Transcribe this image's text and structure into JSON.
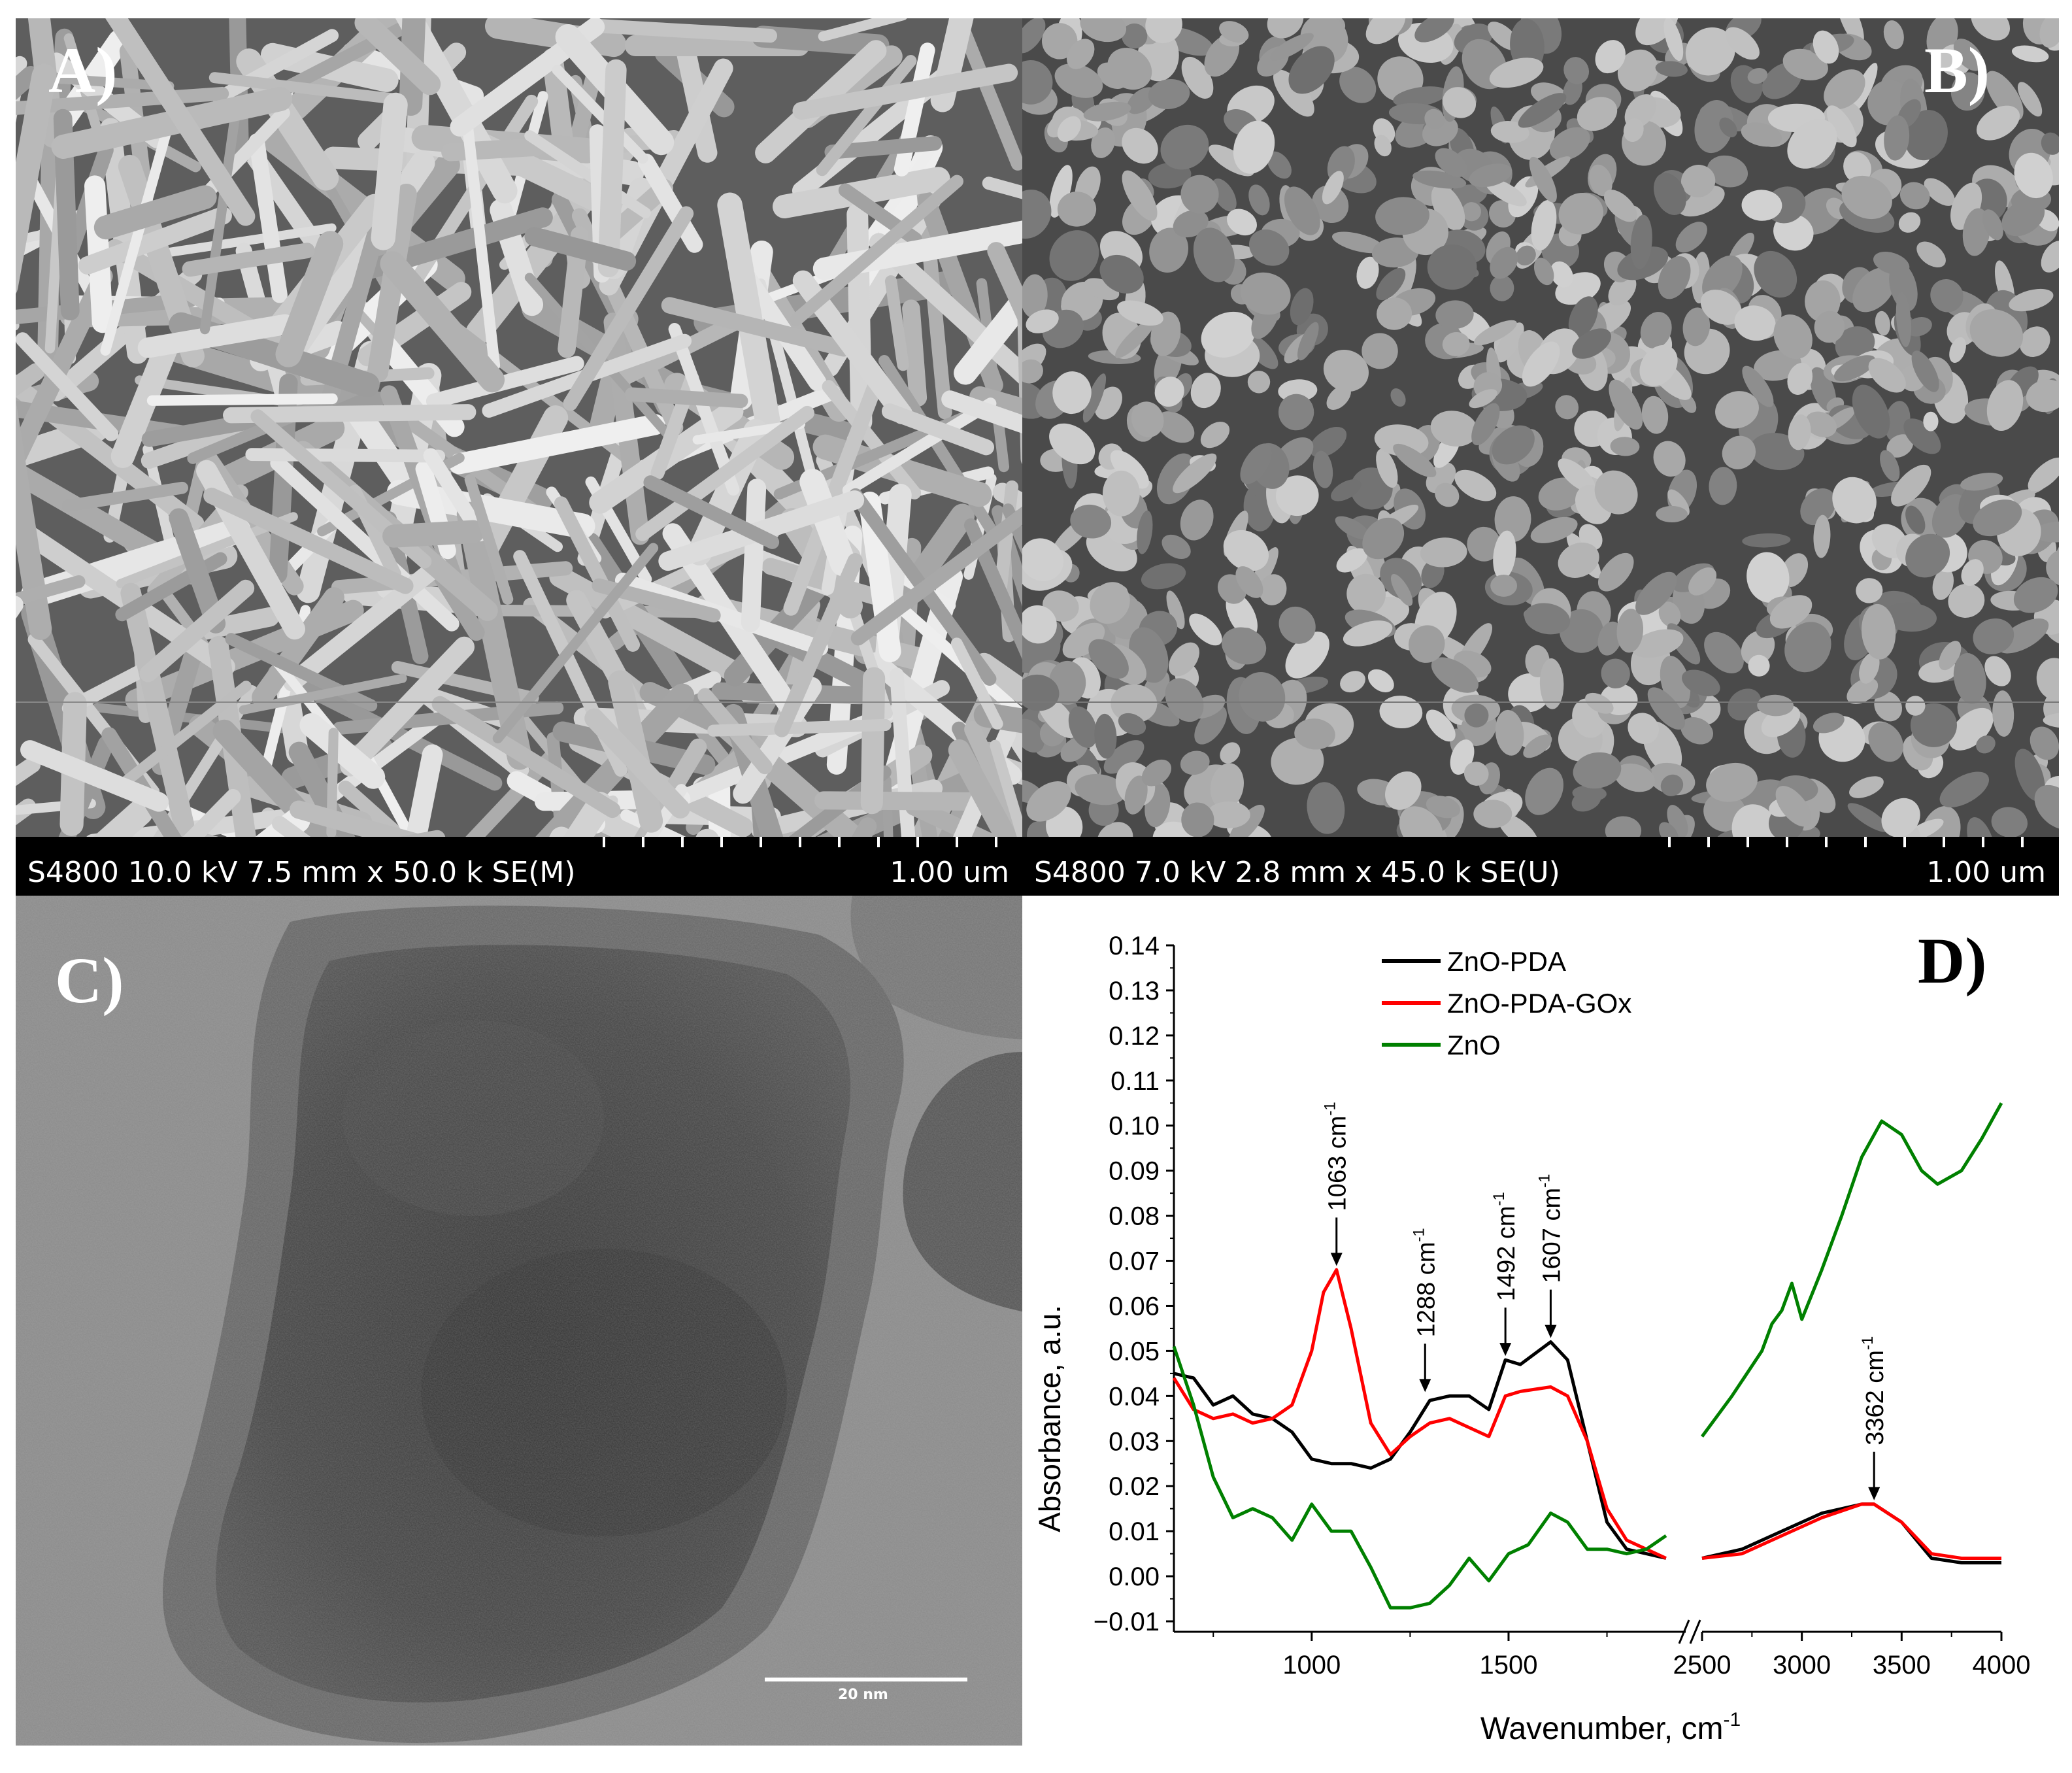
{
  "figure": {
    "panels": {
      "a": {
        "label": "A)",
        "instrument": "S4800 10.0 kV 7.5 mm x 50.0 k SE(M)",
        "scale": "1.00 um"
      },
      "b": {
        "label": "B)",
        "instrument": "S4800 7.0 kV 2.8 mm x 45.0 k SE(U)",
        "scale": "1.00 um"
      },
      "c": {
        "label": "C)",
        "scale": "20 nm"
      },
      "d": {
        "label": "D)"
      }
    }
  },
  "chart_data": {
    "type": "line",
    "xlabel": "Wavenumber, cm",
    "xlabel_sup": "-1",
    "ylabel": "Absorbance, a.u.",
    "ylim": [
      -0.01,
      0.14
    ],
    "yticks": [
      "0.14",
      "0.13",
      "0.12",
      "0.11",
      "0.10",
      "0.09",
      "0.08",
      "0.07",
      "0.06",
      "0.05",
      "0.04",
      "0.03",
      "0.02",
      "0.01",
      "0.00",
      "−0.01"
    ],
    "x_broken_axis": true,
    "x_segments": [
      [
        650,
        2500
      ],
      [
        2500,
        4000
      ]
    ],
    "xticks_left": [
      "1000",
      "1500"
    ],
    "xticks_right": [
      "2500",
      "3000",
      "3500",
      "4000"
    ],
    "legend_position": "top-center",
    "series": [
      {
        "name": "ZnO-PDA",
        "color": "#000000",
        "left": [
          [
            650,
            0.045
          ],
          [
            700,
            0.044
          ],
          [
            750,
            0.038
          ],
          [
            800,
            0.04
          ],
          [
            850,
            0.036
          ],
          [
            900,
            0.035
          ],
          [
            950,
            0.032
          ],
          [
            1000,
            0.026
          ],
          [
            1050,
            0.025
          ],
          [
            1100,
            0.025
          ],
          [
            1150,
            0.024
          ],
          [
            1200,
            0.026
          ],
          [
            1250,
            0.032
          ],
          [
            1300,
            0.039
          ],
          [
            1350,
            0.04
          ],
          [
            1400,
            0.04
          ],
          [
            1450,
            0.037
          ],
          [
            1492,
            0.048
          ],
          [
            1530,
            0.047
          ],
          [
            1607,
            0.052
          ],
          [
            1650,
            0.048
          ],
          [
            1700,
            0.03
          ],
          [
            1750,
            0.012
          ],
          [
            1800,
            0.006
          ],
          [
            1850,
            0.005
          ],
          [
            1900,
            0.004
          ]
        ],
        "right": [
          [
            2500,
            0.004
          ],
          [
            2700,
            0.006
          ],
          [
            2900,
            0.01
          ],
          [
            3100,
            0.014
          ],
          [
            3300,
            0.016
          ],
          [
            3362,
            0.016
          ],
          [
            3500,
            0.012
          ],
          [
            3650,
            0.004
          ],
          [
            3800,
            0.003
          ],
          [
            4000,
            0.003
          ]
        ]
      },
      {
        "name": "ZnO-PDA-GOx",
        "color": "#ff0000",
        "left": [
          [
            650,
            0.044
          ],
          [
            700,
            0.037
          ],
          [
            750,
            0.035
          ],
          [
            800,
            0.036
          ],
          [
            850,
            0.034
          ],
          [
            900,
            0.035
          ],
          [
            950,
            0.038
          ],
          [
            1000,
            0.05
          ],
          [
            1030,
            0.063
          ],
          [
            1063,
            0.068
          ],
          [
            1100,
            0.055
          ],
          [
            1150,
            0.034
          ],
          [
            1200,
            0.027
          ],
          [
            1250,
            0.031
          ],
          [
            1300,
            0.034
          ],
          [
            1350,
            0.035
          ],
          [
            1400,
            0.033
          ],
          [
            1450,
            0.031
          ],
          [
            1492,
            0.04
          ],
          [
            1530,
            0.041
          ],
          [
            1607,
            0.042
          ],
          [
            1650,
            0.04
          ],
          [
            1700,
            0.03
          ],
          [
            1750,
            0.015
          ],
          [
            1800,
            0.008
          ],
          [
            1850,
            0.006
          ],
          [
            1900,
            0.004
          ]
        ],
        "right": [
          [
            2500,
            0.004
          ],
          [
            2700,
            0.005
          ],
          [
            2900,
            0.009
          ],
          [
            3100,
            0.013
          ],
          [
            3300,
            0.016
          ],
          [
            3362,
            0.016
          ],
          [
            3500,
            0.012
          ],
          [
            3650,
            0.005
          ],
          [
            3800,
            0.004
          ],
          [
            4000,
            0.004
          ]
        ]
      },
      {
        "name": "ZnO",
        "color": "#008000",
        "left": [
          [
            650,
            0.051
          ],
          [
            700,
            0.038
          ],
          [
            750,
            0.022
          ],
          [
            800,
            0.013
          ],
          [
            850,
            0.015
          ],
          [
            900,
            0.013
          ],
          [
            950,
            0.008
          ],
          [
            1000,
            0.016
          ],
          [
            1050,
            0.01
          ],
          [
            1100,
            0.01
          ],
          [
            1150,
            0.002
          ],
          [
            1200,
            -0.007
          ],
          [
            1250,
            -0.007
          ],
          [
            1300,
            -0.006
          ],
          [
            1350,
            -0.002
          ],
          [
            1400,
            0.004
          ],
          [
            1450,
            -0.001
          ],
          [
            1500,
            0.005
          ],
          [
            1550,
            0.007
          ],
          [
            1607,
            0.014
          ],
          [
            1650,
            0.012
          ],
          [
            1700,
            0.006
          ],
          [
            1750,
            0.006
          ],
          [
            1800,
            0.005
          ],
          [
            1850,
            0.006
          ],
          [
            1900,
            0.009
          ]
        ],
        "right": [
          [
            2500,
            0.031
          ],
          [
            2650,
            0.04
          ],
          [
            2800,
            0.05
          ],
          [
            2850,
            0.056
          ],
          [
            2900,
            0.059
          ],
          [
            2950,
            0.065
          ],
          [
            3000,
            0.057
          ],
          [
            3100,
            0.068
          ],
          [
            3200,
            0.08
          ],
          [
            3300,
            0.093
          ],
          [
            3400,
            0.101
          ],
          [
            3500,
            0.098
          ],
          [
            3600,
            0.09
          ],
          [
            3680,
            0.087
          ],
          [
            3800,
            0.09
          ],
          [
            3900,
            0.097
          ],
          [
            4000,
            0.105
          ]
        ]
      }
    ],
    "annotations": [
      {
        "text": "1063 cm",
        "sup": "-1",
        "x": 1063,
        "y": 0.068,
        "segment": "left"
      },
      {
        "text": "1288 cm",
        "sup": "-1",
        "x": 1288,
        "y": 0.04,
        "segment": "left"
      },
      {
        "text": "1492 cm",
        "sup": "-1",
        "x": 1492,
        "y": 0.048,
        "segment": "left"
      },
      {
        "text": "1607 cm",
        "sup": "-1",
        "x": 1607,
        "y": 0.052,
        "segment": "left"
      },
      {
        "text": "3362 cm",
        "sup": "-1",
        "x": 3362,
        "y": 0.016,
        "segment": "right"
      }
    ]
  }
}
